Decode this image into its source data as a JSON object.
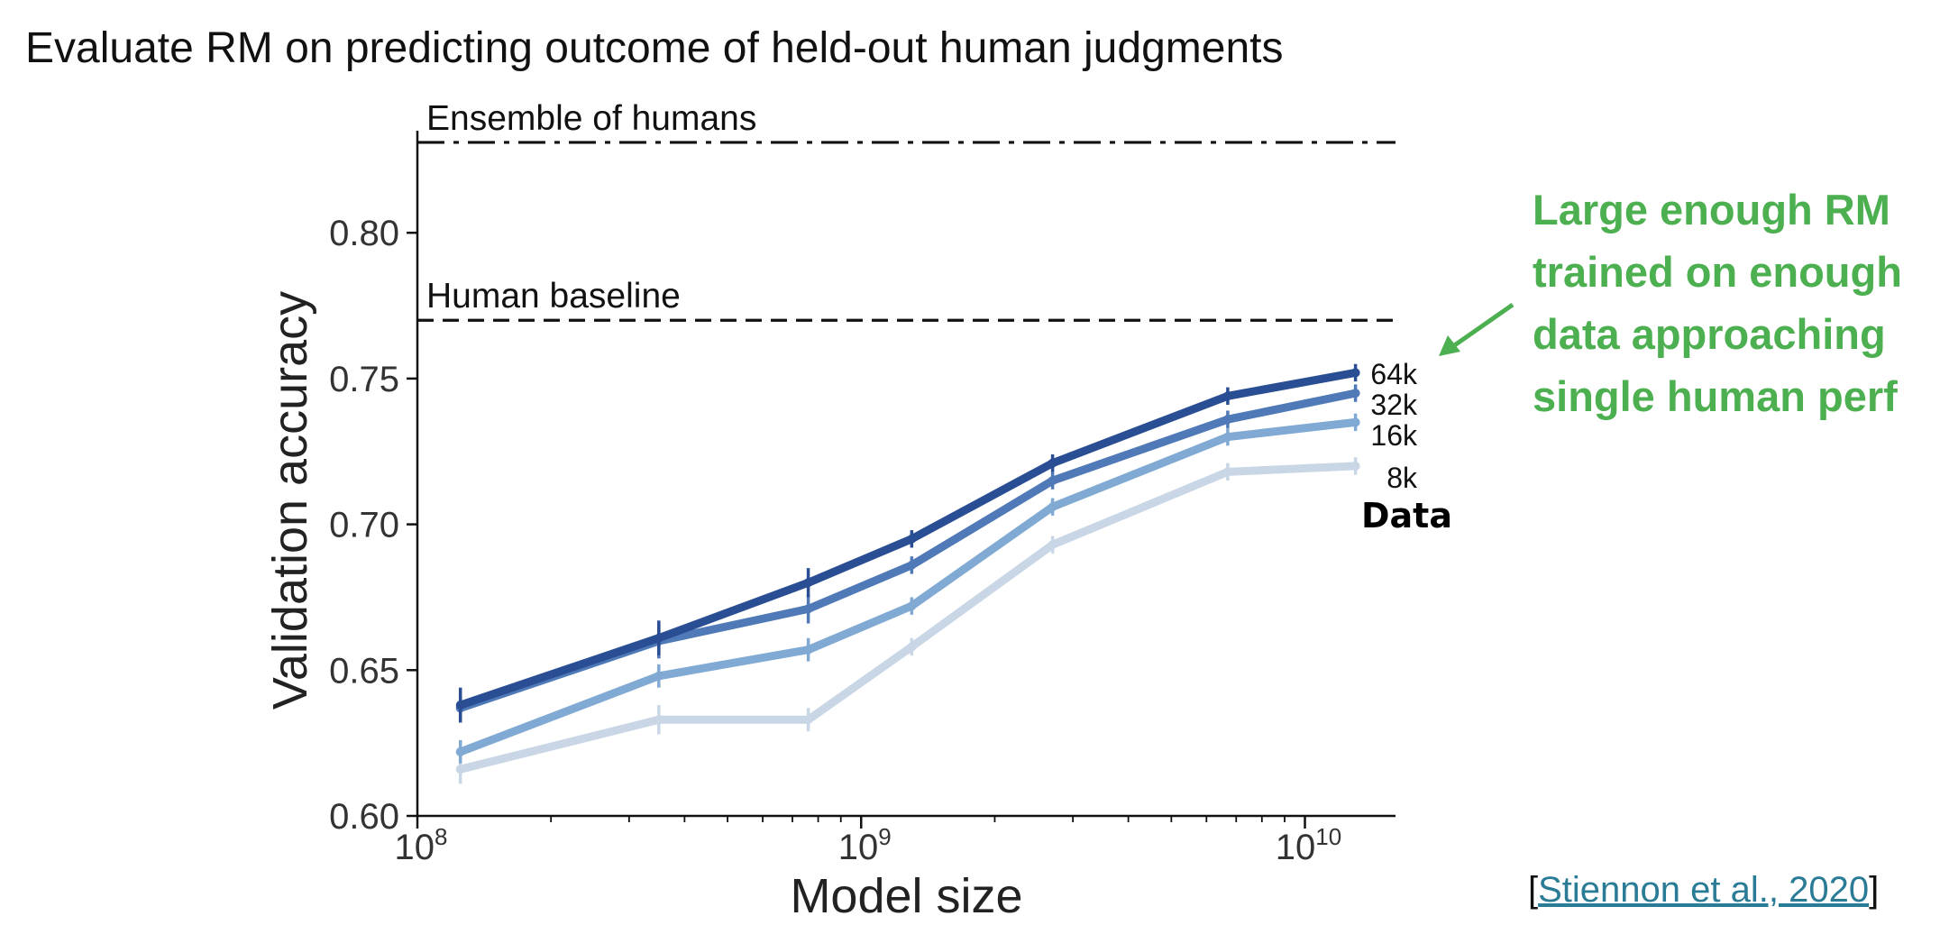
{
  "title": "Evaluate RM on predicting outcome of held-out human judgments",
  "annotation": "Large enough RM trained on enough data approaching single human perf",
  "citation": {
    "open": "[",
    "link_text": "Stiennon et al., 2020",
    "close": "]"
  },
  "chart_data": {
    "type": "line",
    "xlabel": "Model size",
    "ylabel": "Validation accuracy",
    "x_scale": "log",
    "xlim": [
      100000000,
      16000000000
    ],
    "ylim": [
      0.6,
      0.835
    ],
    "x_ticks": [
      {
        "value": 100000000,
        "base": "10",
        "exp": "8"
      },
      {
        "value": 1000000000,
        "base": "10",
        "exp": "9"
      },
      {
        "value": 10000000000,
        "base": "10",
        "exp": "10"
      }
    ],
    "y_ticks": [
      "0.60",
      "0.65",
      "0.70",
      "0.75",
      "0.80"
    ],
    "x": [
      125000000,
      350000000,
      760000000,
      1300000000,
      2700000000,
      6700000000,
      13000000000
    ],
    "legend_title": "Data",
    "series": [
      {
        "name": "8k",
        "color": "#c8d6e6",
        "values": [
          0.616,
          0.633,
          0.633,
          0.658,
          0.693,
          0.718,
          0.72
        ],
        "err": [
          0.005,
          0.005,
          0.004,
          0.003,
          0.003,
          0.003,
          0.003
        ]
      },
      {
        "name": "16k",
        "color": "#80aad3",
        "values": [
          0.622,
          0.648,
          0.657,
          0.672,
          0.706,
          0.73,
          0.735
        ],
        "err": [
          0.004,
          0.004,
          0.004,
          0.003,
          0.003,
          0.003,
          0.003
        ]
      },
      {
        "name": "32k",
        "color": "#4f79b7",
        "values": [
          0.637,
          0.66,
          0.671,
          0.686,
          0.715,
          0.736,
          0.745
        ],
        "err": [
          0.004,
          0.006,
          0.005,
          0.003,
          0.003,
          0.003,
          0.003
        ]
      },
      {
        "name": "64k",
        "color": "#2a4e93",
        "values": [
          0.638,
          0.661,
          0.68,
          0.695,
          0.721,
          0.744,
          0.752
        ],
        "err": [
          0.006,
          0.006,
          0.005,
          0.003,
          0.003,
          0.003,
          0.003
        ]
      }
    ],
    "reference_lines": [
      {
        "label": "Ensemble of humans",
        "value": 0.831,
        "style": "dash-dot"
      },
      {
        "label": "Human baseline",
        "value": 0.77,
        "style": "dashed"
      }
    ],
    "grid": false
  }
}
